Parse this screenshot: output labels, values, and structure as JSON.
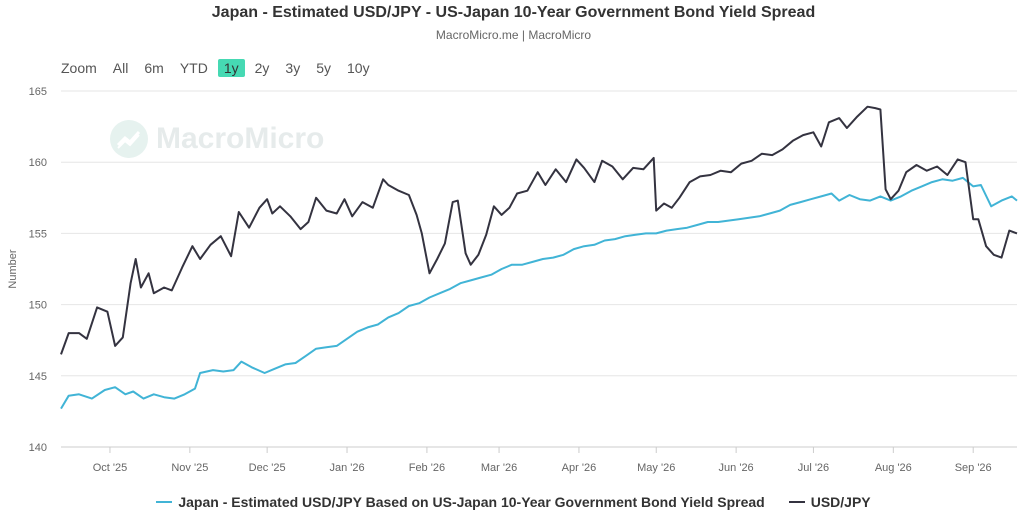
{
  "header": {
    "title": "Japan - Estimated USD/JPY - US-Japan 10-Year Government Bond Yield Spread",
    "subtitle": "MacroMicro.me | MacroMicro"
  },
  "zoom": {
    "label": "Zoom",
    "buttons": [
      "All",
      "6m",
      "YTD",
      "1y",
      "2y",
      "3y",
      "5y",
      "10y"
    ],
    "active": "1y"
  },
  "watermark": {
    "text": "MacroMicro"
  },
  "chart_data": {
    "type": "line",
    "title": "Japan - Estimated USD/JPY - US-Japan 10-Year Government Bond Yield Spread",
    "ylabel": "Number",
    "xlabel": "",
    "ylim": [
      140,
      165
    ],
    "yticks": [
      140,
      145,
      150,
      155,
      160,
      165
    ],
    "x_range": [
      "2025-09-12",
      "2026-09-18"
    ],
    "x_ticks": [
      {
        "date": "2025-10-01",
        "label": "Oct '25"
      },
      {
        "date": "2025-11-01",
        "label": "Nov '25"
      },
      {
        "date": "2025-12-01",
        "label": "Dec '25"
      },
      {
        "date": "2026-01-01",
        "label": "Jan '26"
      },
      {
        "date": "2026-02-01",
        "label": "Feb '26"
      },
      {
        "date": "2026-03-01",
        "label": "Mar '26"
      },
      {
        "date": "2026-04-01",
        "label": "Apr '26"
      },
      {
        "date": "2026-05-01",
        "label": "May '26"
      },
      {
        "date": "2026-06-01",
        "label": "Jun '26"
      },
      {
        "date": "2026-07-01",
        "label": "Jul '26"
      },
      {
        "date": "2026-08-01",
        "label": "Aug '26"
      },
      {
        "date": "2026-09-01",
        "label": "Sep '26"
      }
    ],
    "grid": true,
    "legend_position": "bottom-center",
    "series": [
      {
        "name": "Japan - Estimated USD/JPY Based on US-Japan 10-Year Government Bond Yield Spread",
        "color": "#41b4d6",
        "points": [
          [
            "2025-09-12",
            142.7
          ],
          [
            "2025-09-15",
            143.6
          ],
          [
            "2025-09-19",
            143.7
          ],
          [
            "2025-09-24",
            143.4
          ],
          [
            "2025-09-29",
            144.0
          ],
          [
            "2025-10-03",
            144.2
          ],
          [
            "2025-10-07",
            143.7
          ],
          [
            "2025-10-10",
            143.9
          ],
          [
            "2025-10-14",
            143.4
          ],
          [
            "2025-10-18",
            143.7
          ],
          [
            "2025-10-22",
            143.5
          ],
          [
            "2025-10-26",
            143.4
          ],
          [
            "2025-10-30",
            143.7
          ],
          [
            "2025-11-03",
            144.1
          ],
          [
            "2025-11-05",
            145.2
          ],
          [
            "2025-11-10",
            145.4
          ],
          [
            "2025-11-14",
            145.3
          ],
          [
            "2025-11-18",
            145.4
          ],
          [
            "2025-11-21",
            146.0
          ],
          [
            "2025-11-25",
            145.6
          ],
          [
            "2025-11-30",
            145.2
          ],
          [
            "2025-12-04",
            145.5
          ],
          [
            "2025-12-08",
            145.8
          ],
          [
            "2025-12-12",
            145.9
          ],
          [
            "2025-12-16",
            146.4
          ],
          [
            "2025-12-20",
            146.9
          ],
          [
            "2025-12-24",
            147.0
          ],
          [
            "2025-12-28",
            147.1
          ],
          [
            "2026-01-01",
            147.6
          ],
          [
            "2026-01-05",
            148.1
          ],
          [
            "2026-01-09",
            148.4
          ],
          [
            "2026-01-13",
            148.6
          ],
          [
            "2026-01-17",
            149.1
          ],
          [
            "2026-01-21",
            149.4
          ],
          [
            "2026-01-25",
            149.9
          ],
          [
            "2026-01-29",
            150.1
          ],
          [
            "2026-02-02",
            150.5
          ],
          [
            "2026-02-06",
            150.8
          ],
          [
            "2026-02-10",
            151.1
          ],
          [
            "2026-02-14",
            151.5
          ],
          [
            "2026-02-18",
            151.7
          ],
          [
            "2026-02-22",
            151.9
          ],
          [
            "2026-02-26",
            152.1
          ],
          [
            "2026-03-02",
            152.5
          ],
          [
            "2026-03-06",
            152.8
          ],
          [
            "2026-03-10",
            152.8
          ],
          [
            "2026-03-14",
            153.0
          ],
          [
            "2026-03-18",
            153.2
          ],
          [
            "2026-03-22",
            153.3
          ],
          [
            "2026-03-26",
            153.5
          ],
          [
            "2026-03-30",
            153.9
          ],
          [
            "2026-04-03",
            154.1
          ],
          [
            "2026-04-07",
            154.2
          ],
          [
            "2026-04-11",
            154.5
          ],
          [
            "2026-04-15",
            154.6
          ],
          [
            "2026-04-19",
            154.8
          ],
          [
            "2026-04-23",
            154.9
          ],
          [
            "2026-04-27",
            155.0
          ],
          [
            "2026-05-01",
            155.0
          ],
          [
            "2026-05-05",
            155.2
          ],
          [
            "2026-05-09",
            155.3
          ],
          [
            "2026-05-13",
            155.4
          ],
          [
            "2026-05-17",
            155.6
          ],
          [
            "2026-05-21",
            155.8
          ],
          [
            "2026-05-25",
            155.8
          ],
          [
            "2026-05-29",
            155.9
          ],
          [
            "2026-06-02",
            156.0
          ],
          [
            "2026-06-06",
            156.1
          ],
          [
            "2026-06-10",
            156.2
          ],
          [
            "2026-06-14",
            156.4
          ],
          [
            "2026-06-18",
            156.6
          ],
          [
            "2026-06-22",
            157.0
          ],
          [
            "2026-06-26",
            157.2
          ],
          [
            "2026-06-30",
            157.4
          ],
          [
            "2026-07-04",
            157.6
          ],
          [
            "2026-07-08",
            157.8
          ],
          [
            "2026-07-11",
            157.3
          ],
          [
            "2026-07-15",
            157.7
          ],
          [
            "2026-07-19",
            157.4
          ],
          [
            "2026-07-23",
            157.3
          ],
          [
            "2026-07-27",
            157.6
          ],
          [
            "2026-07-31",
            157.3
          ],
          [
            "2026-08-04",
            157.6
          ],
          [
            "2026-08-08",
            158.0
          ],
          [
            "2026-08-12",
            158.3
          ],
          [
            "2026-08-16",
            158.6
          ],
          [
            "2026-08-20",
            158.8
          ],
          [
            "2026-08-24",
            158.7
          ],
          [
            "2026-08-28",
            158.9
          ],
          [
            "2026-09-01",
            158.3
          ],
          [
            "2026-09-04",
            158.4
          ],
          [
            "2026-09-08",
            156.9
          ],
          [
            "2026-09-12",
            157.3
          ],
          [
            "2026-09-16",
            157.6
          ],
          [
            "2026-09-18",
            157.3
          ]
        ]
      },
      {
        "name": "USD/JPY",
        "color": "#343340",
        "points": [
          [
            "2025-09-12",
            146.5
          ],
          [
            "2025-09-15",
            148.0
          ],
          [
            "2025-09-19",
            148.0
          ],
          [
            "2025-09-22",
            147.6
          ],
          [
            "2025-09-26",
            149.8
          ],
          [
            "2025-09-30",
            149.5
          ],
          [
            "2025-10-03",
            147.1
          ],
          [
            "2025-10-06",
            147.7
          ],
          [
            "2025-10-09",
            151.5
          ],
          [
            "2025-10-11",
            153.2
          ],
          [
            "2025-10-13",
            151.2
          ],
          [
            "2025-10-16",
            152.2
          ],
          [
            "2025-10-18",
            150.8
          ],
          [
            "2025-10-22",
            151.2
          ],
          [
            "2025-10-25",
            151.0
          ],
          [
            "2025-10-29",
            152.6
          ],
          [
            "2025-11-02",
            154.1
          ],
          [
            "2025-11-05",
            153.2
          ],
          [
            "2025-11-09",
            154.2
          ],
          [
            "2025-11-13",
            154.8
          ],
          [
            "2025-11-17",
            153.4
          ],
          [
            "2025-11-20",
            156.5
          ],
          [
            "2025-11-24",
            155.4
          ],
          [
            "2025-11-28",
            156.8
          ],
          [
            "2025-12-01",
            157.4
          ],
          [
            "2025-12-03",
            156.4
          ],
          [
            "2025-12-06",
            156.9
          ],
          [
            "2025-12-10",
            156.2
          ],
          [
            "2025-12-14",
            155.3
          ],
          [
            "2025-12-17",
            155.8
          ],
          [
            "2025-12-20",
            157.5
          ],
          [
            "2025-12-24",
            156.6
          ],
          [
            "2025-12-28",
            156.4
          ],
          [
            "2025-12-31",
            157.4
          ],
          [
            "2026-01-03",
            156.2
          ],
          [
            "2026-01-07",
            157.2
          ],
          [
            "2026-01-11",
            156.8
          ],
          [
            "2026-01-15",
            158.8
          ],
          [
            "2026-01-17",
            158.4
          ],
          [
            "2026-01-21",
            158.0
          ],
          [
            "2026-01-25",
            157.7
          ],
          [
            "2026-01-28",
            156.3
          ],
          [
            "2026-01-30",
            155.0
          ],
          [
            "2026-02-02",
            152.2
          ],
          [
            "2026-02-05",
            153.2
          ],
          [
            "2026-02-08",
            154.3
          ],
          [
            "2026-02-11",
            157.2
          ],
          [
            "2026-02-13",
            157.3
          ],
          [
            "2026-02-16",
            153.6
          ],
          [
            "2026-02-18",
            152.8
          ],
          [
            "2026-02-21",
            153.5
          ],
          [
            "2026-02-24",
            154.9
          ],
          [
            "2026-02-27",
            156.9
          ],
          [
            "2026-03-02",
            156.3
          ],
          [
            "2026-03-05",
            156.8
          ],
          [
            "2026-03-08",
            157.8
          ],
          [
            "2026-03-12",
            158.0
          ],
          [
            "2026-03-16",
            159.3
          ],
          [
            "2026-03-19",
            158.4
          ],
          [
            "2026-03-23",
            159.5
          ],
          [
            "2026-03-27",
            158.6
          ],
          [
            "2026-03-31",
            160.2
          ],
          [
            "2026-04-03",
            159.6
          ],
          [
            "2026-04-07",
            158.6
          ],
          [
            "2026-04-10",
            160.1
          ],
          [
            "2026-04-14",
            159.7
          ],
          [
            "2026-04-18",
            158.8
          ],
          [
            "2026-04-22",
            159.6
          ],
          [
            "2026-04-26",
            159.5
          ],
          [
            "2026-04-30",
            160.3
          ],
          [
            "2026-05-01",
            156.6
          ],
          [
            "2026-05-04",
            157.1
          ],
          [
            "2026-05-07",
            156.8
          ],
          [
            "2026-05-10",
            157.5
          ],
          [
            "2026-05-14",
            158.6
          ],
          [
            "2026-05-18",
            159.0
          ],
          [
            "2026-05-22",
            159.1
          ],
          [
            "2026-05-26",
            159.4
          ],
          [
            "2026-05-30",
            159.3
          ],
          [
            "2026-06-03",
            159.9
          ],
          [
            "2026-06-07",
            160.1
          ],
          [
            "2026-06-11",
            160.6
          ],
          [
            "2026-06-15",
            160.5
          ],
          [
            "2026-06-19",
            160.9
          ],
          [
            "2026-06-23",
            161.5
          ],
          [
            "2026-06-27",
            161.9
          ],
          [
            "2026-07-01",
            162.1
          ],
          [
            "2026-07-04",
            161.1
          ],
          [
            "2026-07-07",
            162.8
          ],
          [
            "2026-07-11",
            163.1
          ],
          [
            "2026-07-14",
            162.4
          ],
          [
            "2026-07-18",
            163.2
          ],
          [
            "2026-07-22",
            163.9
          ],
          [
            "2026-07-25",
            163.8
          ],
          [
            "2026-07-27",
            163.7
          ],
          [
            "2026-07-29",
            158.1
          ],
          [
            "2026-07-31",
            157.4
          ],
          [
            "2026-08-03",
            158.0
          ],
          [
            "2026-08-06",
            159.3
          ],
          [
            "2026-08-10",
            159.8
          ],
          [
            "2026-08-14",
            159.4
          ],
          [
            "2026-08-18",
            159.7
          ],
          [
            "2026-08-22",
            159.1
          ],
          [
            "2026-08-26",
            160.2
          ],
          [
            "2026-08-29",
            160.0
          ],
          [
            "2026-09-01",
            156.0
          ],
          [
            "2026-09-03",
            156.0
          ],
          [
            "2026-09-06",
            154.1
          ],
          [
            "2026-09-09",
            153.5
          ],
          [
            "2026-09-12",
            153.3
          ],
          [
            "2026-09-15",
            155.2
          ],
          [
            "2026-09-18",
            155.0
          ]
        ]
      }
    ]
  }
}
